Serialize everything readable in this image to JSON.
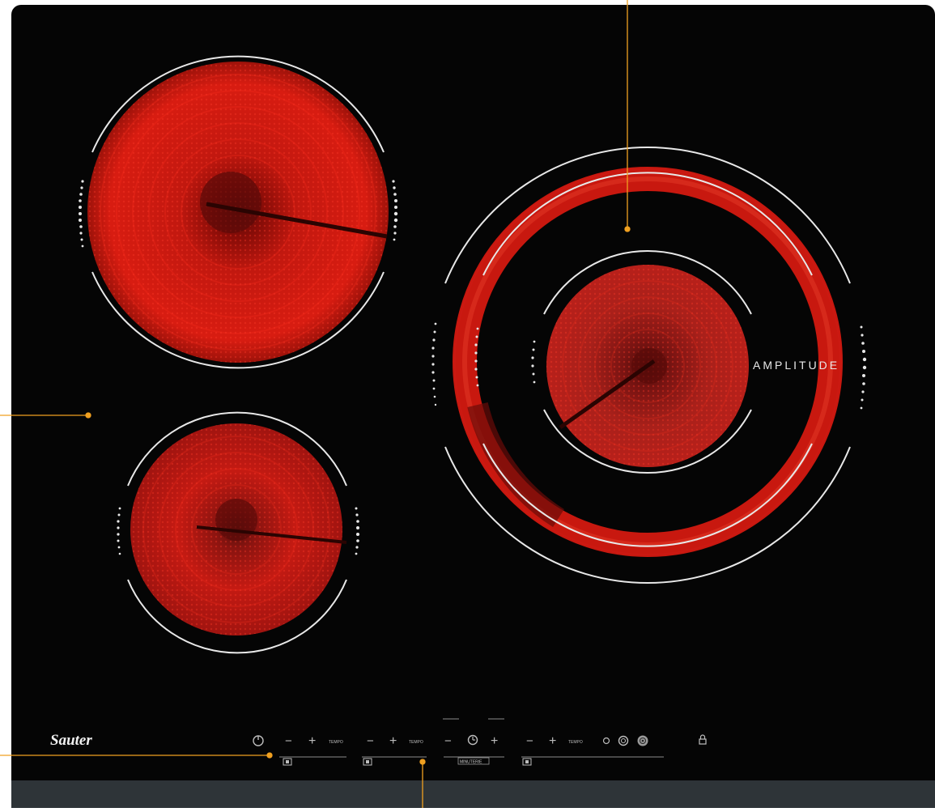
{
  "cooktop": {
    "brand": "Sauter",
    "zone_label": "AMPLITUDE"
  },
  "controls": {
    "power_icon": "power-icon",
    "minus_glyph": "−",
    "plus_glyph": "+",
    "tempo_label": "TEMPO",
    "timer_icon": "clock-icon",
    "timer_label": "MINUTERIE",
    "zone_select_icons": [
      "single-ring-icon",
      "double-ring-icon",
      "triple-ring-icon"
    ],
    "lock_icon": "lock-icon"
  },
  "colors": {
    "glass": "#050505",
    "frame": "#1b1b1b",
    "bottom_strip": "#2e3438",
    "zone_red": "#d41a10",
    "zone_dark": "#6a0806",
    "ring_white": "#e8e8e8",
    "callout": "#f0a020"
  }
}
